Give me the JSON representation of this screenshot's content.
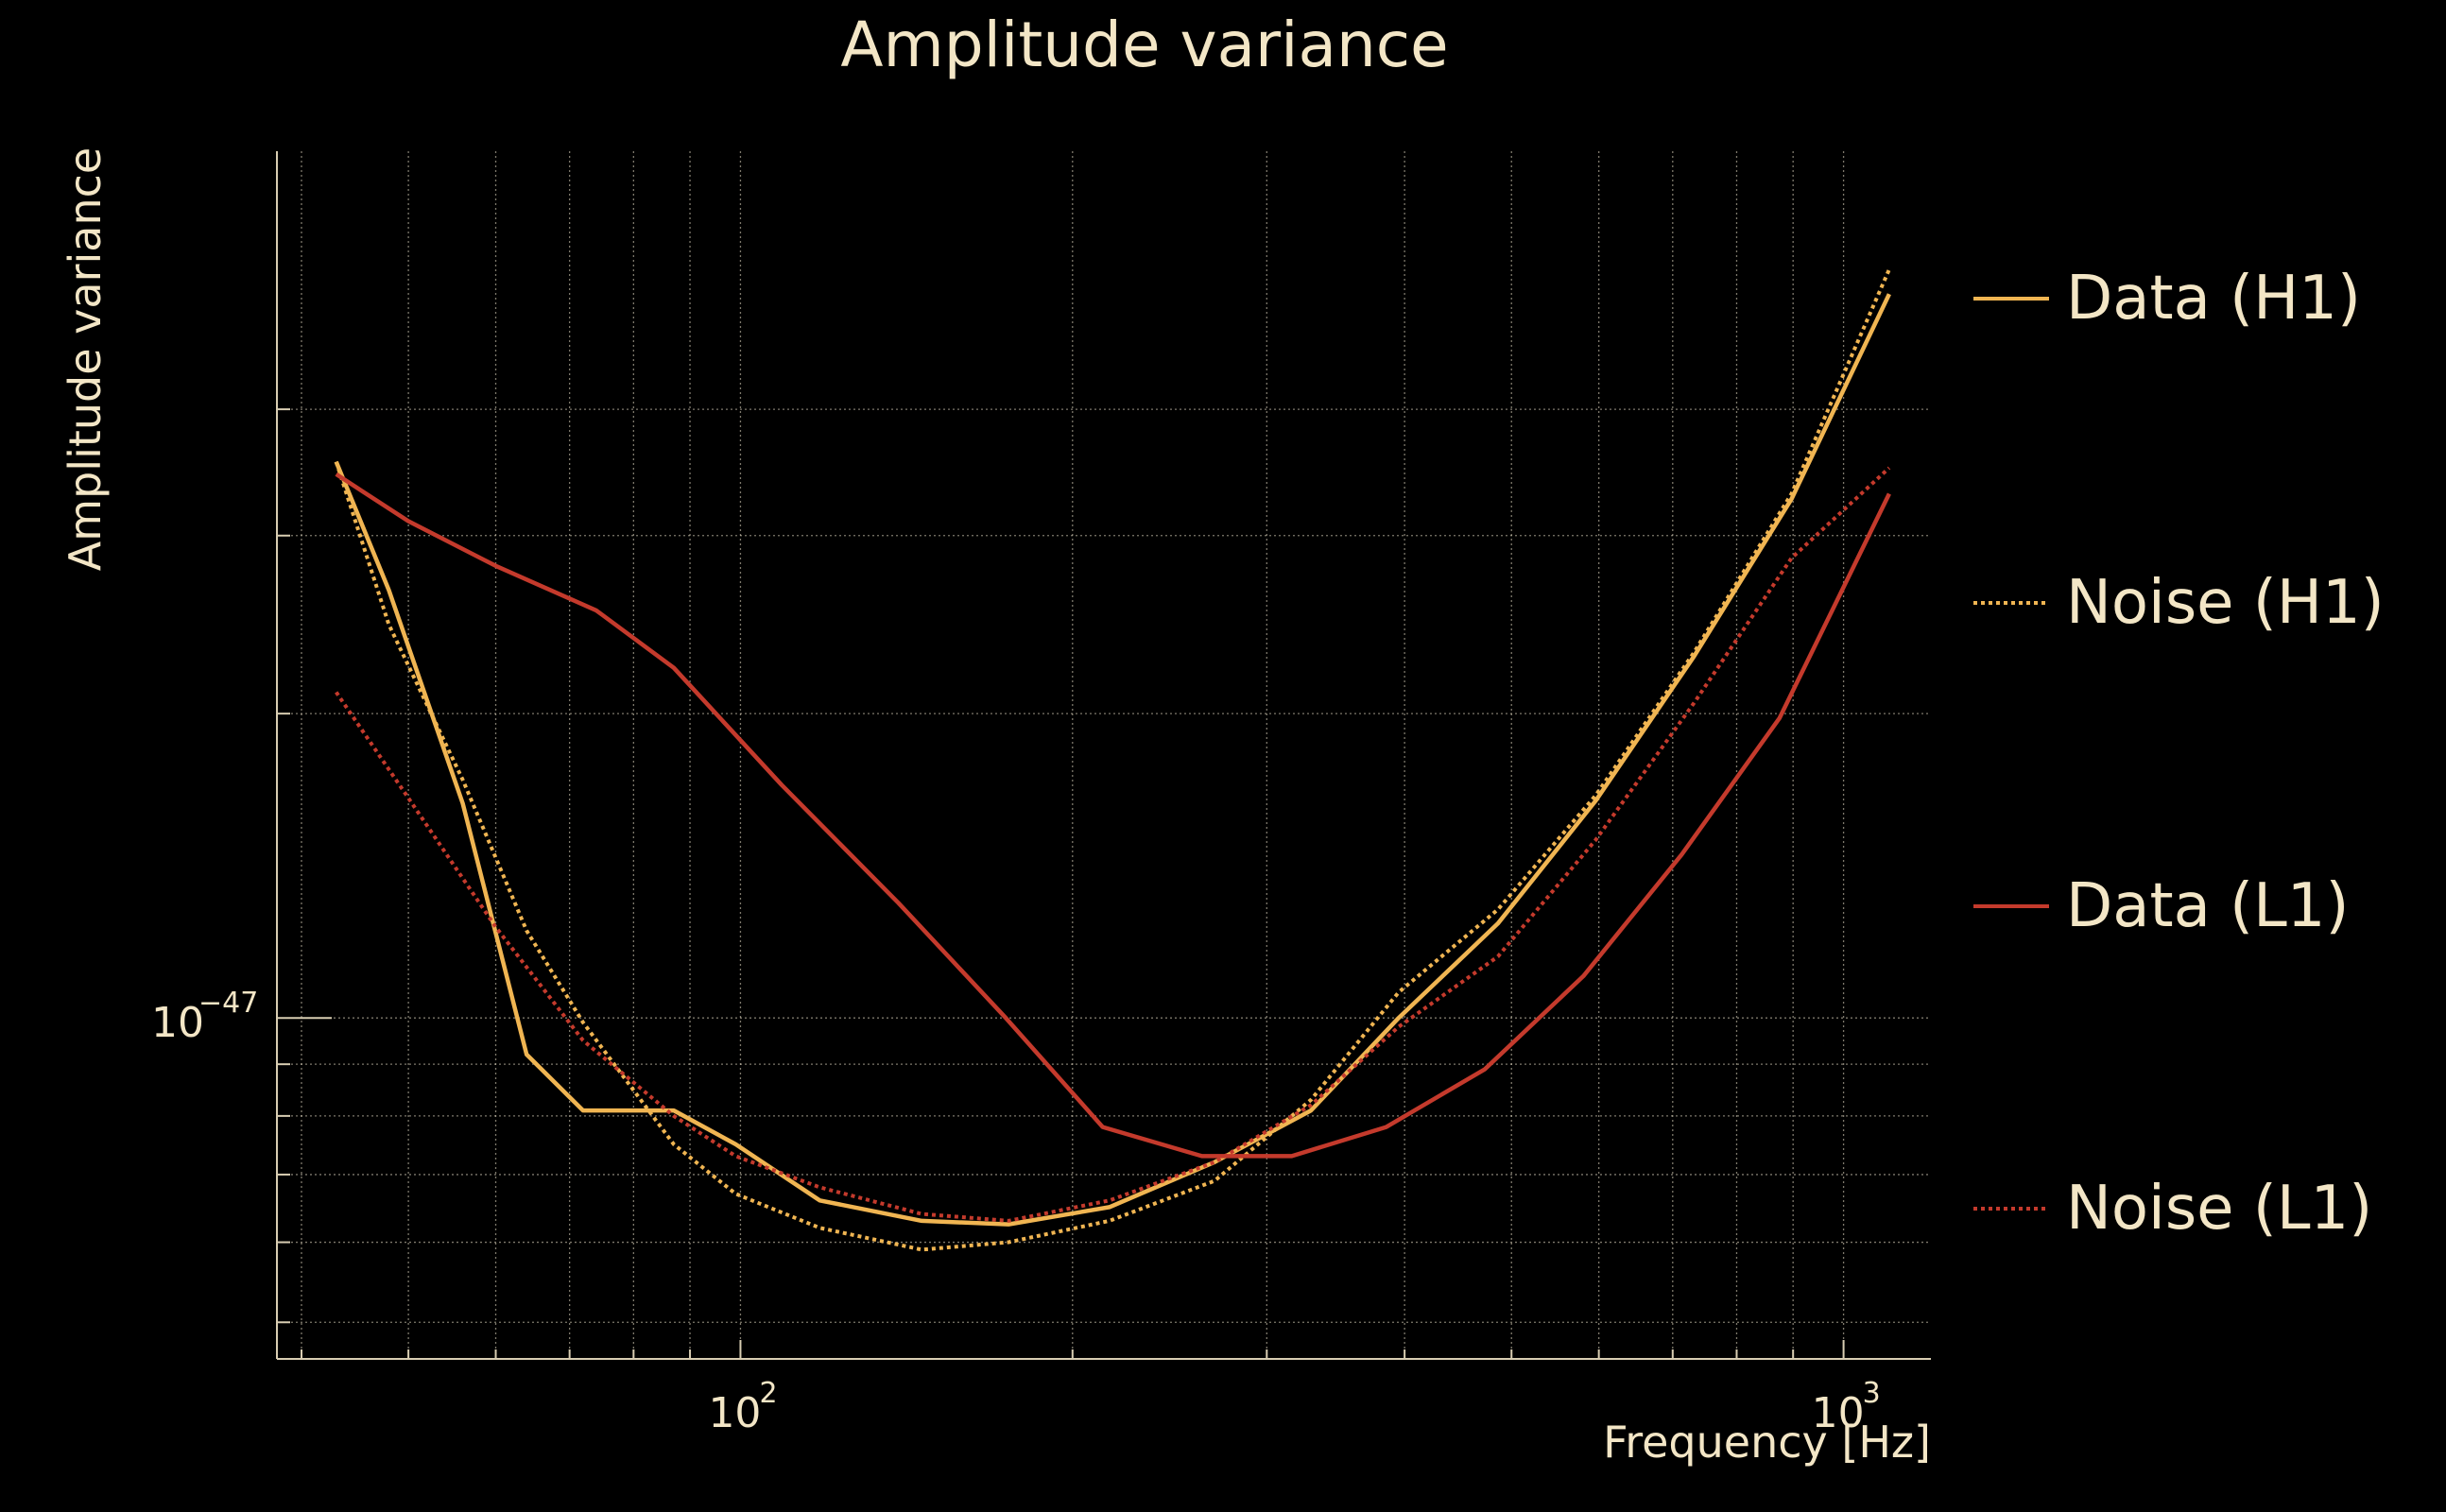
{
  "chart_data": {
    "type": "line",
    "title": "Amplitude variance",
    "xlabel": "Frequency [Hz]",
    "ylabel": "Amplitude variance",
    "x_scale": "log",
    "y_scale": "log",
    "xlim": [
      38,
      1200
    ],
    "ylim": [
      4.6e-48,
      7.2e-47
    ],
    "x_major_ticks": [
      100,
      1000
    ],
    "x_tick_labels": [
      {
        "base": "10",
        "exp": "2"
      },
      {
        "base": "10",
        "exp": "3"
      }
    ],
    "x_minor_ticks": [
      40,
      50,
      60,
      70,
      80,
      90,
      200,
      300,
      400,
      500,
      600,
      700,
      800,
      900
    ],
    "y_major_ticks": [
      1e-47
    ],
    "y_tick_labels": [
      {
        "base": "10",
        "exp": "−47"
      }
    ],
    "y_minor_ticks": [
      5e-48,
      6e-48,
      7e-48,
      8e-48,
      9e-48,
      2e-47,
      3e-47,
      4e-47
    ],
    "grid": true,
    "legend_position": "right",
    "series": [
      {
        "name": "Data (H1)",
        "color": "#f0b552",
        "dash": "solid",
        "x": [
          43,
          48,
          56,
          64,
          72,
          87,
          99,
          118,
          146,
          175,
          216,
          269,
          329,
          395,
          486,
          596,
          732,
          897,
          1100
        ],
        "y": [
          3.55e-47,
          2.65e-47,
          1.63e-47,
          9.2e-48,
          8.1e-48,
          8.1e-48,
          7.5e-48,
          6.6e-48,
          6.3e-48,
          6.25e-48,
          6.5e-48,
          7.2e-48,
          8.1e-48,
          1e-47,
          1.24e-47,
          1.64e-47,
          2.28e-47,
          3.26e-47,
          5.2e-47
        ]
      },
      {
        "name": "Noise (H1)",
        "color": "#f0b552",
        "dash": "dotted",
        "x": [
          43,
          48,
          56,
          64,
          72,
          87,
          99,
          118,
          146,
          175,
          216,
          269,
          329,
          395,
          486,
          596,
          732,
          897,
          1100
        ],
        "y": [
          3.55e-47,
          2.45e-47,
          1.72e-47,
          1.22e-47,
          9.9e-48,
          7.5e-48,
          6.7e-48,
          6.2e-48,
          5.9e-48,
          6e-48,
          6.3e-48,
          6.9e-48,
          8.3e-48,
          1.06e-47,
          1.28e-47,
          1.66e-47,
          2.3e-47,
          3.3e-47,
          5.5e-47
        ]
      },
      {
        "name": "Data (L1)",
        "color": "#c43a2c",
        "dash": "solid",
        "x": [
          43,
          50,
          60,
          74,
          87,
          109,
          139,
          174,
          213,
          262,
          316,
          385,
          473,
          581,
          713,
          875,
          1100
        ],
        "y": [
          3.45e-47,
          3.1e-47,
          2.8e-47,
          2.53e-47,
          2.22e-47,
          1.7e-47,
          1.3e-47,
          1e-47,
          7.8e-48,
          7.3e-48,
          7.3e-48,
          7.8e-48,
          8.9e-48,
          1.1e-47,
          1.45e-47,
          1.98e-47,
          3.3e-47
        ]
      },
      {
        "name": "Noise (L1)",
        "color": "#c43a2c",
        "dash": "dotted",
        "x": [
          43,
          50,
          60,
          72,
          87,
          99,
          118,
          146,
          175,
          216,
          269,
          329,
          395,
          486,
          596,
          732,
          897,
          1100
        ],
        "y": [
          2.1e-47,
          1.65e-47,
          1.23e-47,
          9.5e-48,
          8e-48,
          7.3e-48,
          6.8e-48,
          6.4e-48,
          6.3e-48,
          6.6e-48,
          7.2e-48,
          8.2e-48,
          9.8e-48,
          1.15e-47,
          1.5e-47,
          2.05e-47,
          2.85e-47,
          3.5e-47
        ]
      }
    ]
  }
}
